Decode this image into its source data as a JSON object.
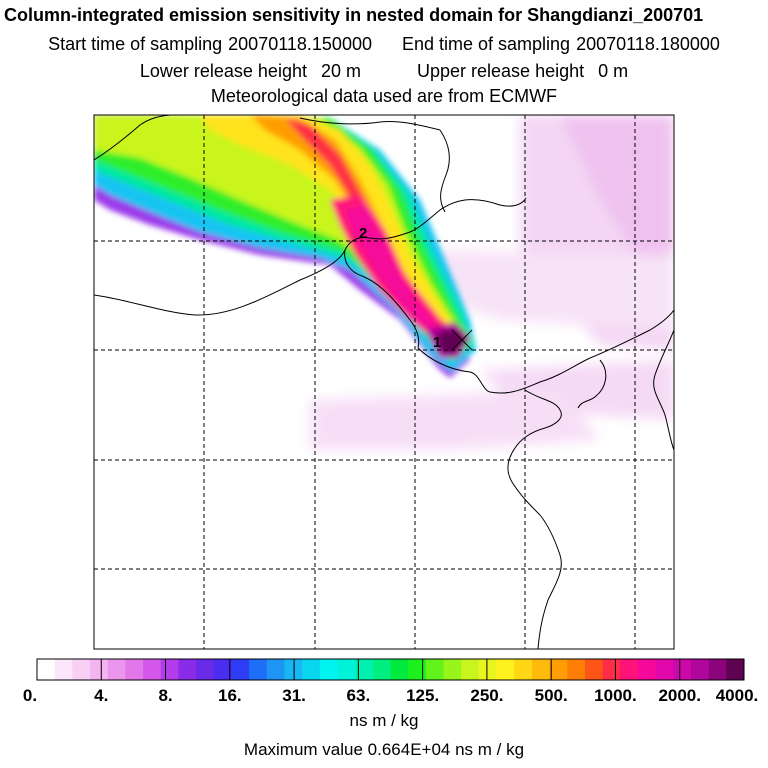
{
  "header": {
    "title": "Column-integrated emission sensitivity in nested domain for Shangdianzi_200701",
    "start_label": "Start time of sampling",
    "start_value": "20070118.150000",
    "end_label": "End time of sampling",
    "end_value": "20070118.180000",
    "lower_label": "Lower release height",
    "lower_value": "20 m",
    "upper_label": "Upper release height",
    "upper_value": "0 m",
    "met_line": "Meteorological data used are from ECMWF"
  },
  "map": {
    "markers": [
      {
        "label": "1",
        "role": "release location"
      },
      {
        "label": "2",
        "role": "plume position"
      }
    ]
  },
  "colorbar": {
    "labels": [
      "0.",
      "4.",
      "8.",
      "16.",
      "31.",
      "63.",
      "125.",
      "250.",
      "500.",
      "1000.",
      "2000.",
      "4000."
    ],
    "colors": [
      "#ffffff",
      "#fde6fb",
      "#f9cff6",
      "#f3b4f0",
      "#eb96ec",
      "#e277ea",
      "#d358ea",
      "#b33cea",
      "#8a2be8",
      "#6a2be8",
      "#4a2df0",
      "#2f3cf6",
      "#1f6ef8",
      "#1e95f5",
      "#18b7f3",
      "#0ad6f0",
      "#00f4f0",
      "#00f2d8",
      "#00f0b0",
      "#00ee80",
      "#00ea40",
      "#1ef01e",
      "#62f41a",
      "#98f51c",
      "#c9f51e",
      "#e9f51f",
      "#fff21c",
      "#ffd714",
      "#ffbb0c",
      "#ff9d06",
      "#ff7e06",
      "#ff5418",
      "#ff2d45",
      "#ff1279",
      "#f5089a",
      "#e107aa",
      "#cc08aa",
      "#b0069a",
      "#8c047c",
      "#5e0252"
    ],
    "units": "ns m / kg"
  },
  "footer": {
    "max_line": "Maximum value  0.664E+04 ns m / kg"
  }
}
